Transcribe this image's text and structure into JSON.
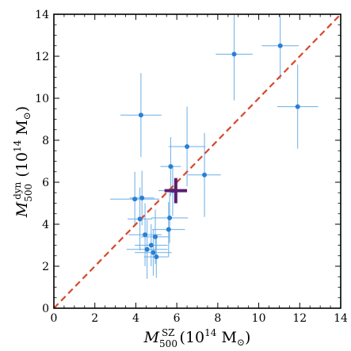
{
  "chart_data": {
    "type": "scatter",
    "xlabel": {
      "sym": "M",
      "sub": "500",
      "sup": "SZ",
      "unit_pre": " (10",
      "unit_exp": "14",
      "unit_post": " M",
      "sun": "⊙",
      "close": ")"
    },
    "ylabel": {
      "sym": "M",
      "sub": "500",
      "sup": "dyn",
      "unit_pre": " (10",
      "unit_exp": "14",
      "unit_post": " M",
      "sun": "⊙",
      "close": ")"
    },
    "xlim": [
      0,
      14
    ],
    "ylim": [
      0,
      14
    ],
    "xticks": [
      "0",
      "2",
      "4",
      "6",
      "8",
      "10",
      "12",
      "14"
    ],
    "yticks": [
      "0",
      "2",
      "4",
      "6",
      "8",
      "10",
      "12",
      "14"
    ],
    "grid": false,
    "colors": {
      "points": "#2a7fd4",
      "errorbars": "#6aaee6",
      "reference": "#d9472b",
      "mean": "#5a1e6e"
    },
    "reference_line": {
      "style": "dashed",
      "x": [
        0,
        14
      ],
      "y": [
        0,
        14
      ]
    },
    "series": [
      {
        "marker": "circle",
        "points": [
          {
            "x": 3.95,
            "y": 5.2,
            "xerr": 1.2,
            "yerr": 1.3
          },
          {
            "x": 4.25,
            "y": 9.2,
            "xerr": 1.0,
            "yerr": 2.0
          },
          {
            "x": 4.3,
            "y": 5.25,
            "xerr": 0.6,
            "yerr": 1.3
          },
          {
            "x": 4.2,
            "y": 4.25,
            "xerr": 0.6,
            "yerr": 1.5
          },
          {
            "x": 4.45,
            "y": 3.5,
            "xerr": 0.8,
            "yerr": 1.5
          },
          {
            "x": 4.55,
            "y": 2.8,
            "xerr": 1.0,
            "yerr": 1.4
          },
          {
            "x": 4.75,
            "y": 3.0,
            "xerr": 0.8,
            "yerr": 1.0
          },
          {
            "x": 4.85,
            "y": 2.65,
            "xerr": 0.9,
            "yerr": 1.1
          },
          {
            "x": 4.95,
            "y": 3.4,
            "xerr": 0.7,
            "yerr": 1.3
          },
          {
            "x": 5.0,
            "y": 2.45,
            "xerr": 0.6,
            "yerr": 1.0
          },
          {
            "x": 5.6,
            "y": 3.75,
            "xerr": 0.8,
            "yerr": 1.3
          },
          {
            "x": 5.65,
            "y": 4.3,
            "xerr": 0.9,
            "yerr": 1.2
          },
          {
            "x": 5.7,
            "y": 6.75,
            "xerr": 0.5,
            "yerr": 1.4
          },
          {
            "x": 5.8,
            "y": 5.6,
            "xerr": 0.7,
            "yerr": 1.2
          },
          {
            "x": 6.5,
            "y": 7.7,
            "xerr": 0.9,
            "yerr": 1.9
          },
          {
            "x": 7.35,
            "y": 6.35,
            "xerr": 0.8,
            "yerr": 2.0
          },
          {
            "x": 8.8,
            "y": 12.1,
            "xerr": 0.9,
            "yerr": 2.2
          },
          {
            "x": 11.05,
            "y": 12.5,
            "xerr": 0.9,
            "yerr": 1.6
          },
          {
            "x": 11.9,
            "y": 9.6,
            "xerr": 1.0,
            "yerr": 2.0
          }
        ]
      },
      {
        "marker": "plus",
        "points": [
          {
            "x": 5.95,
            "y": 5.6,
            "xerr": 0.55,
            "yerr": 0.6
          }
        ]
      }
    ]
  }
}
